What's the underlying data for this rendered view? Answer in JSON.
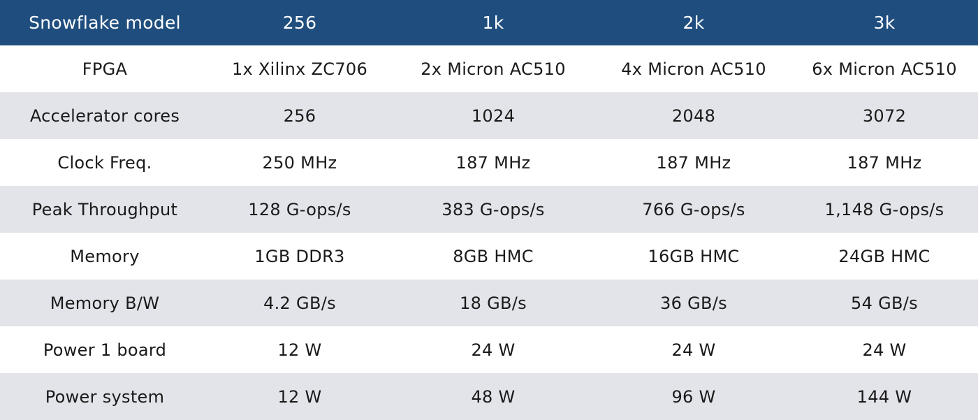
{
  "colors": {
    "header_bg": "#1f4e7e",
    "header_text": "#ffffff",
    "row_bg": "#ffffff",
    "row_alt_bg": "#e3e4ea",
    "cell_text": "#1a1a1a"
  },
  "table": {
    "headers": [
      "Snowflake model",
      "256",
      "1k",
      "2k",
      "3k"
    ],
    "rows": [
      [
        "FPGA",
        "1x Xilinx ZC706",
        "2x Micron AC510",
        "4x Micron AC510",
        "6x Micron AC510"
      ],
      [
        "Accelerator cores",
        "256",
        "1024",
        "2048",
        "3072"
      ],
      [
        "Clock Freq.",
        "250 MHz",
        "187 MHz",
        "187 MHz",
        "187 MHz"
      ],
      [
        "Peak Throughput",
        "128 G-ops/s",
        "383 G-ops/s",
        "766 G-ops/s",
        "1,148 G-ops/s"
      ],
      [
        "Memory",
        "1GB DDR3",
        "8GB HMC",
        "16GB HMC",
        "24GB HMC"
      ],
      [
        "Memory B/W",
        "4.2 GB/s",
        "18 GB/s",
        "36 GB/s",
        "54 GB/s"
      ],
      [
        "Power 1 board",
        "12 W",
        "24 W",
        "24 W",
        "24 W"
      ],
      [
        "Power system",
        "12 W",
        "48 W",
        "96 W",
        "144 W"
      ]
    ]
  }
}
